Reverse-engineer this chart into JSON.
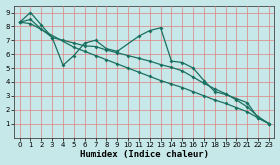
{
  "xlabel": "Humidex (Indice chaleur)",
  "xlim": [
    -0.5,
    23.5
  ],
  "ylim": [
    0,
    9.5
  ],
  "xticks": [
    0,
    1,
    2,
    3,
    4,
    5,
    6,
    7,
    8,
    9,
    10,
    11,
    12,
    13,
    14,
    15,
    16,
    17,
    18,
    19,
    20,
    21,
    22,
    23
  ],
  "yticks": [
    1,
    2,
    3,
    4,
    5,
    6,
    7,
    8,
    9
  ],
  "bg_color": "#c6e8e8",
  "grid_color": "#e08080",
  "line_color": "#1a7060",
  "line1_x": [
    0,
    1,
    2,
    3,
    4,
    5,
    6,
    7,
    8,
    9,
    11,
    12,
    13,
    14,
    15,
    16,
    17,
    18,
    19,
    20,
    21,
    22,
    23
  ],
  "line1_y": [
    8.3,
    9.0,
    8.1,
    7.2,
    5.2,
    5.9,
    6.8,
    7.0,
    6.4,
    6.2,
    7.3,
    7.7,
    7.9,
    5.5,
    5.4,
    5.0,
    4.1,
    3.3,
    3.1,
    2.8,
    2.5,
    1.4,
    1.0
  ],
  "line2_x": [
    0,
    1,
    2,
    3,
    4,
    5,
    6,
    7,
    8,
    9,
    10,
    11,
    12,
    13,
    14,
    15,
    16,
    17,
    18,
    19,
    20,
    21,
    22,
    23
  ],
  "line2_y": [
    8.3,
    8.5,
    7.8,
    7.2,
    7.0,
    6.8,
    6.6,
    6.55,
    6.3,
    6.1,
    5.9,
    5.7,
    5.5,
    5.25,
    5.05,
    4.8,
    4.35,
    3.9,
    3.5,
    3.15,
    2.7,
    2.2,
    1.5,
    1.0
  ],
  "line3_x": [
    0,
    1,
    5,
    6,
    7,
    8,
    9,
    10,
    11,
    12,
    13,
    14,
    15,
    16,
    17,
    18,
    19,
    20,
    21,
    22,
    23
  ],
  "line3_y": [
    8.3,
    8.2,
    6.5,
    6.2,
    5.9,
    5.6,
    5.3,
    5.0,
    4.7,
    4.4,
    4.1,
    3.85,
    3.6,
    3.3,
    3.0,
    2.7,
    2.45,
    2.15,
    1.85,
    1.4,
    1.0
  ]
}
